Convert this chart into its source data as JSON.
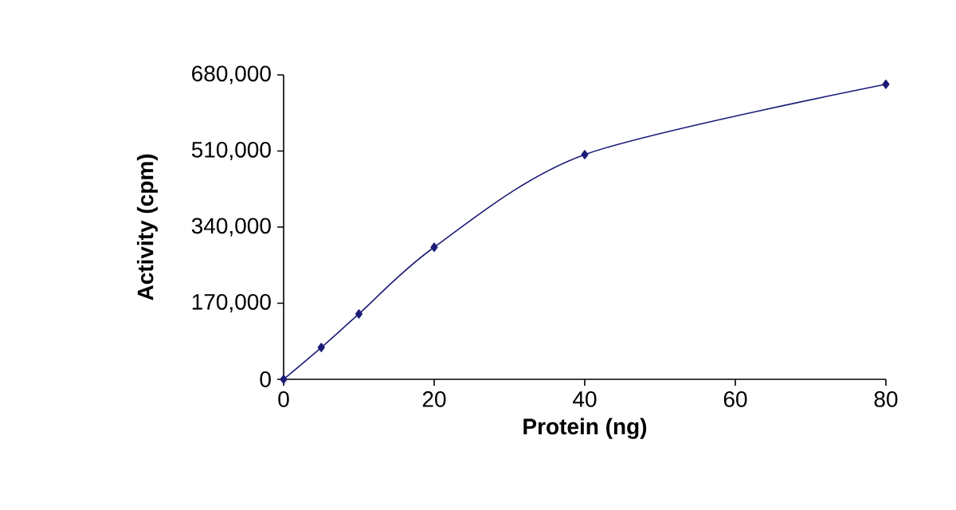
{
  "chart_data": {
    "type": "line",
    "xlabel": "Protein (ng)",
    "ylabel": "Activity (cpm)",
    "x": [
      0,
      5,
      10,
      20,
      40,
      80
    ],
    "series": [
      {
        "color": "#1c1c78",
        "values": [
          0,
          71000,
          146000,
          295000,
          502000,
          659000
        ]
      }
    ],
    "xlim": [
      0,
      80
    ],
    "xticks": [
      0,
      20,
      40,
      60,
      80
    ],
    "ylim": [
      0,
      680000
    ],
    "yticks": [
      {
        "value": 0,
        "label": "0"
      },
      {
        "value": 170000,
        "label": "170,000"
      },
      {
        "value": 340000,
        "label": "340,000"
      },
      {
        "value": 510000,
        "label": "510,000"
      },
      {
        "value": 680000,
        "label": "680,000"
      }
    ],
    "marker": "diamond",
    "line_style": "solid"
  }
}
